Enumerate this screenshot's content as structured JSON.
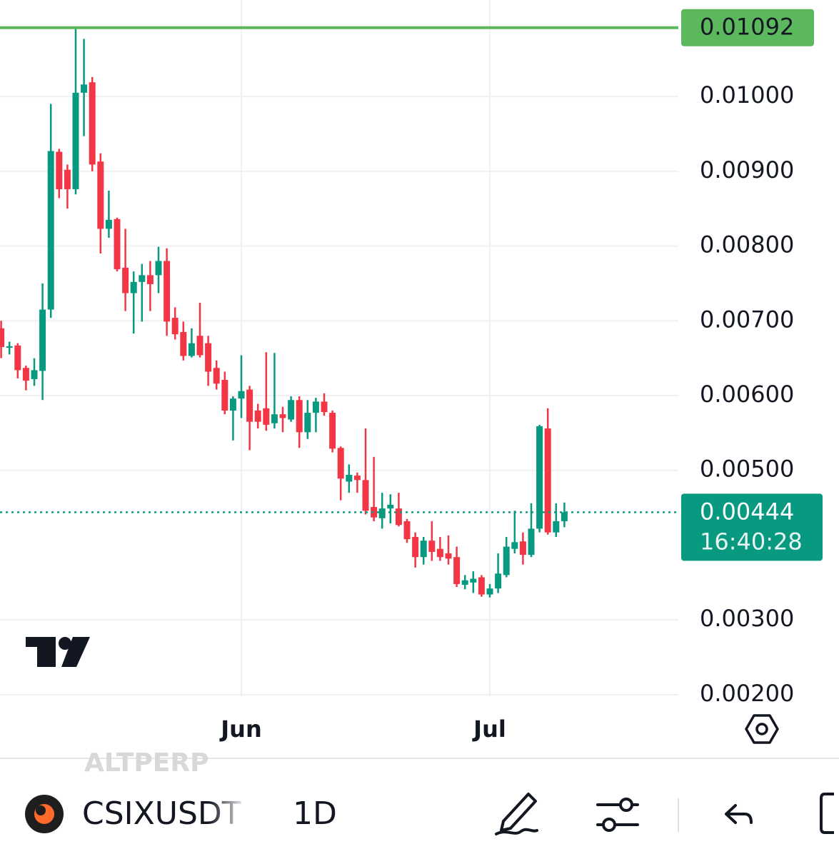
{
  "chart_data": {
    "type": "candlestick",
    "categories": [
      null,
      null,
      null,
      null,
      null,
      null,
      null,
      null,
      null,
      null,
      null,
      null,
      null,
      null,
      null,
      null,
      null,
      null,
      null,
      null,
      null,
      null,
      null,
      null,
      null,
      null,
      null,
      null,
      null,
      "Jun",
      null,
      null,
      null,
      null,
      null,
      null,
      null,
      null,
      null,
      null,
      null,
      null,
      null,
      null,
      null,
      null,
      null,
      null,
      null,
      null,
      null,
      null,
      null,
      null,
      null,
      null,
      null,
      null,
      null,
      "Jul",
      null,
      null,
      null,
      null,
      null,
      null,
      null,
      null,
      null
    ],
    "open": [
      0.0069,
      0.00664,
      0.00667,
      0.00637,
      0.00622,
      0.00633,
      0.00715,
      0.00926,
      0.00902,
      0.00876,
      0.01005,
      0.01019,
      0.00913,
      0.00823,
      0.00836,
      0.00771,
      0.00737,
      0.00752,
      0.00761,
      0.00761,
      0.0078,
      0.00704,
      0.00685,
      0.00653,
      0.0068,
      0.0067,
      0.00637,
      0.00621,
      0.0058,
      0.00596,
      0.00608,
      0.0058,
      0.00583,
      0.00563,
      0.00575,
      0.00568,
      0.00594,
      0.00551,
      0.00577,
      0.00592,
      0.00577,
      0.0053,
      0.00485,
      0.00493,
      0.00487,
      0.00451,
      0.00436,
      0.00449,
      0.00449,
      0.00432,
      0.00411,
      0.00384,
      0.00406,
      0.00395,
      0.00389,
      0.00384,
      0.00347,
      0.0035,
      0.00357,
      0.00334,
      0.00342,
      0.0036,
      0.00395,
      0.00405,
      0.00387,
      0.00422,
      0.00556,
      0.00417,
      0.00432
    ],
    "high": [
      0.007,
      0.00672,
      0.0067,
      0.0064,
      0.0065,
      0.0075,
      0.0099,
      0.0093,
      0.00909,
      0.01092,
      0.01077,
      0.01026,
      0.00924,
      0.00874,
      0.00838,
      0.00823,
      0.00766,
      0.00776,
      0.0078,
      0.00799,
      0.00797,
      0.00718,
      0.00699,
      0.0069,
      0.00724,
      0.0068,
      0.00647,
      0.00632,
      0.00599,
      0.00654,
      0.00613,
      0.00589,
      0.00658,
      0.00657,
      0.00585,
      0.00599,
      0.00599,
      0.00594,
      0.00597,
      0.00603,
      0.0058,
      0.00532,
      0.00508,
      0.00497,
      0.00556,
      0.00518,
      0.0047,
      0.00468,
      0.0047,
      0.00435,
      0.00417,
      0.00411,
      0.00432,
      0.00411,
      0.00413,
      0.00398,
      0.0036,
      0.00365,
      0.0036,
      0.00348,
      0.00389,
      0.00411,
      0.00446,
      0.00417,
      0.00456,
      0.00561,
      0.00583,
      0.00456,
      0.00457
    ],
    "low": [
      0.0065,
      0.00655,
      0.00623,
      0.00607,
      0.00613,
      0.00594,
      0.00704,
      0.00864,
      0.0085,
      0.00869,
      0.00947,
      0.009,
      0.0079,
      0.00811,
      0.00766,
      0.00713,
      0.00683,
      0.00699,
      0.00713,
      0.00737,
      0.0068,
      0.00675,
      0.00647,
      0.00651,
      0.00651,
      0.00613,
      0.00608,
      0.00575,
      0.0054,
      0.0057,
      0.00527,
      0.00556,
      0.00553,
      0.00556,
      0.00551,
      0.00565,
      0.0053,
      0.00542,
      0.00551,
      0.00573,
      0.00524,
      0.0046,
      0.0047,
      0.0047,
      0.00441,
      0.00432,
      0.00422,
      0.00429,
      0.00425,
      0.00403,
      0.0037,
      0.00374,
      0.00379,
      0.00379,
      0.00374,
      0.00344,
      0.00341,
      0.00336,
      0.00331,
      0.0033,
      0.00336,
      0.00357,
      0.00389,
      0.00374,
      0.00384,
      0.00417,
      0.00414,
      0.00411,
      0.00424
    ],
    "close": [
      0.00665,
      0.00666,
      0.00634,
      0.0062,
      0.00634,
      0.00715,
      0.00927,
      0.00876,
      0.00876,
      0.01005,
      0.01016,
      0.00909,
      0.00823,
      0.00835,
      0.00769,
      0.00737,
      0.00752,
      0.00761,
      0.00749,
      0.0078,
      0.00699,
      0.00682,
      0.00653,
      0.0067,
      0.00654,
      0.00632,
      0.00616,
      0.0058,
      0.00596,
      0.00606,
      0.00565,
      0.00565,
      0.00561,
      0.00575,
      0.0057,
      0.00594,
      0.00551,
      0.00577,
      0.00592,
      0.00578,
      0.00529,
      0.00489,
      0.00494,
      0.00487,
      0.00446,
      0.00437,
      0.00449,
      0.00454,
      0.00427,
      0.00408,
      0.00384,
      0.00406,
      0.00391,
      0.00384,
      0.00382,
      0.00348,
      0.00353,
      0.00355,
      0.00334,
      0.00342,
      0.00362,
      0.00398,
      0.00404,
      0.00387,
      0.00422,
      0.00559,
      0.00417,
      0.00432,
      0.00444
    ],
    "up_color": "#089981",
    "down_color": "#f23645",
    "ylim": [
      0.00198,
      0.01129
    ],
    "yticks": [
      {
        "value": 0.002,
        "label": "0.00200"
      },
      {
        "value": 0.003,
        "label": "0.00300"
      },
      {
        "value": 0.005,
        "label": "0.00500"
      },
      {
        "value": 0.006,
        "label": "0.00600"
      },
      {
        "value": 0.007,
        "label": "0.00700"
      },
      {
        "value": 0.008,
        "label": "0.00800"
      },
      {
        "value": 0.009,
        "label": "0.00900"
      },
      {
        "value": 0.01,
        "label": "0.01000"
      }
    ],
    "grid": true,
    "price_lines": [
      {
        "value": 0.01092,
        "label": "0.01092",
        "color": "#5cb85c"
      },
      {
        "value": 0.00444,
        "label": "0.00444",
        "countdown": "16:40:28",
        "color": "#089981"
      }
    ]
  },
  "toolbar": {
    "symbol": "CSIXUSDT",
    "interval": "1D",
    "faded_symbol": "ALTPERP"
  }
}
